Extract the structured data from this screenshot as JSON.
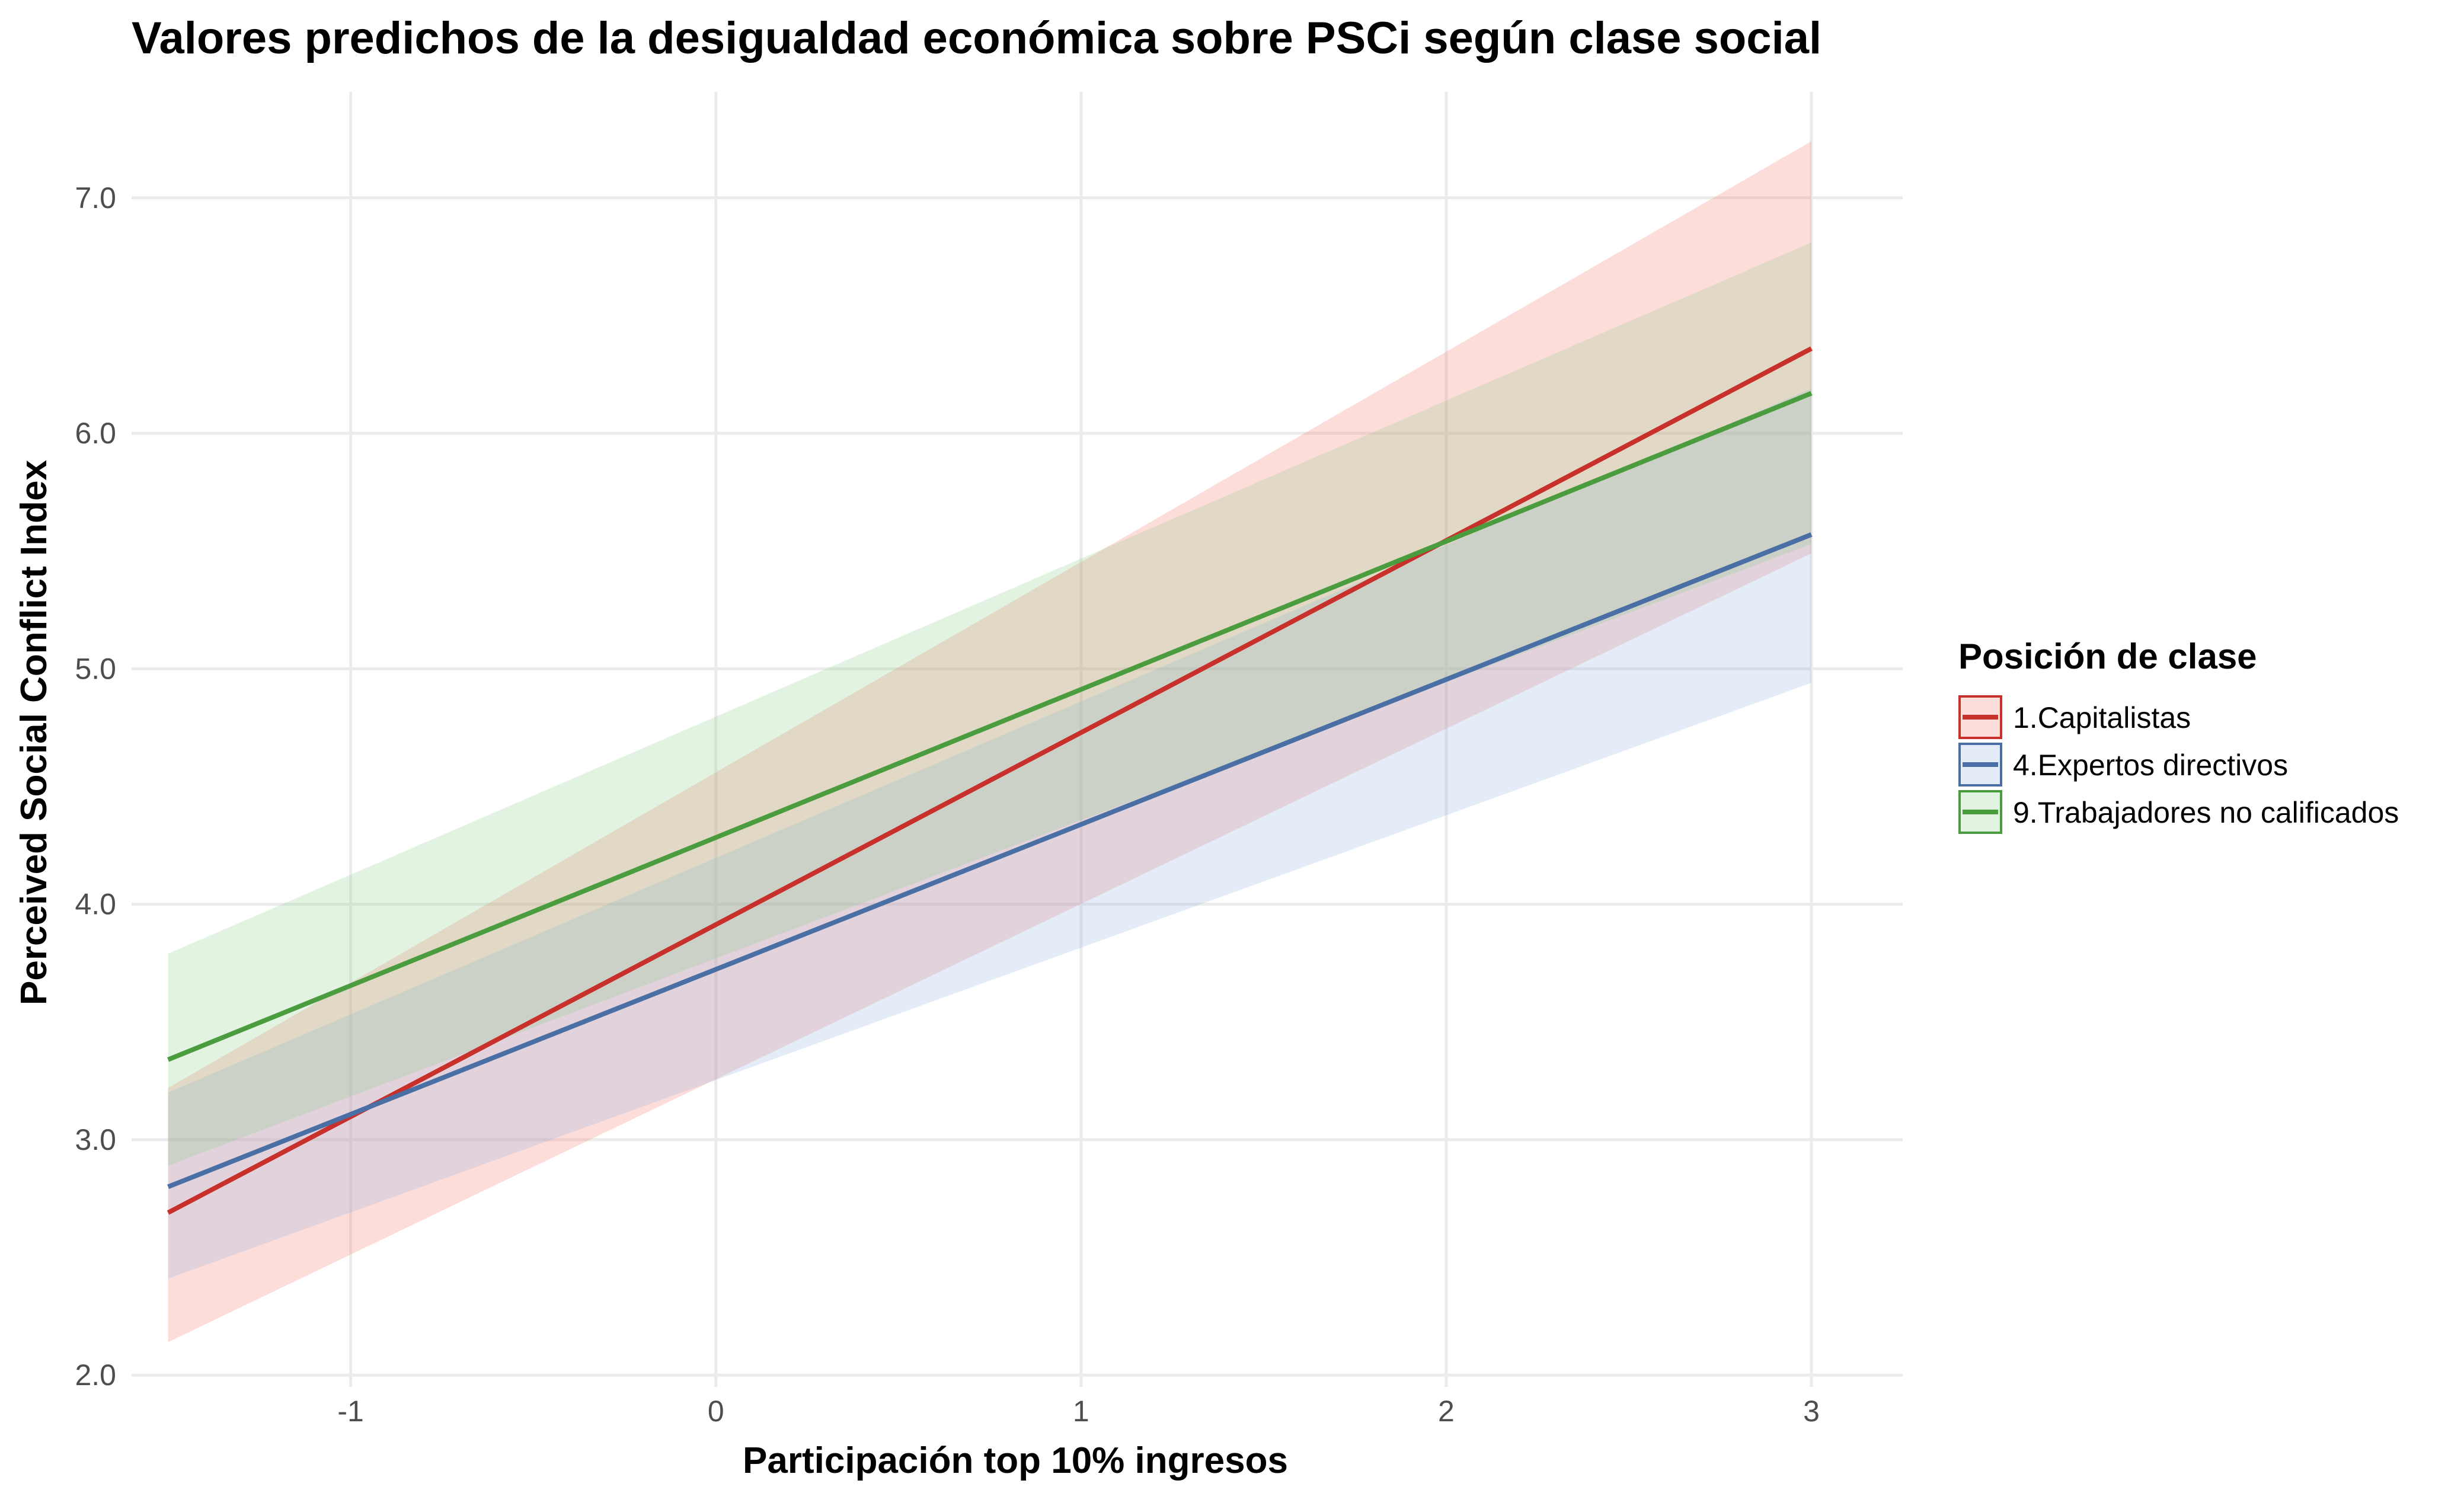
{
  "chart_data": {
    "type": "line",
    "title": "Valores predichos de la desigualdad económica sobre PSCi según clase social",
    "xlabel": "Participación top 10% ingresos",
    "ylabel": "Perceived Social Conflict Index",
    "xlim": [
      -1.6,
      3.25
    ],
    "ylim": [
      1.95,
      7.45
    ],
    "x_ticks": [
      -1,
      0,
      1,
      2,
      3
    ],
    "x_tick_labels": [
      "-1",
      "0",
      "1",
      "2",
      "3"
    ],
    "y_ticks": [
      2,
      3,
      4,
      5,
      6,
      7
    ],
    "y_tick_labels": [
      "2.0",
      "3.0",
      "4.0",
      "5.0",
      "6.0",
      "7.0"
    ],
    "grid": true,
    "legend": {
      "title": "Posición de clase",
      "placement": "right"
    },
    "series": [
      {
        "name": "1.Capitalistas",
        "color": "#c8302c",
        "fill_color": "#f8766d",
        "x": [
          -1.5,
          3
        ],
        "y": [
          2.69,
          6.36
        ],
        "ci_lower": [
          2.14,
          5.49
        ],
        "ci_upper": [
          3.22,
          7.24
        ]
      },
      {
        "name": "4.Expertos directivos",
        "color": "#4a6fa5",
        "fill_color": "#8fb3e0",
        "x": [
          -1.5,
          3
        ],
        "y": [
          2.8,
          5.57
        ],
        "ci_lower": [
          2.41,
          4.94
        ],
        "ci_upper": [
          3.2,
          6.19
        ]
      },
      {
        "name": "9.Trabajadores no calificados",
        "color": "#4a9c3f",
        "fill_color": "#8fd08a",
        "x": [
          -1.5,
          3
        ],
        "y": [
          3.34,
          6.17
        ],
        "ci_lower": [
          2.89,
          5.53
        ],
        "ci_upper": [
          3.79,
          6.81
        ]
      }
    ]
  }
}
